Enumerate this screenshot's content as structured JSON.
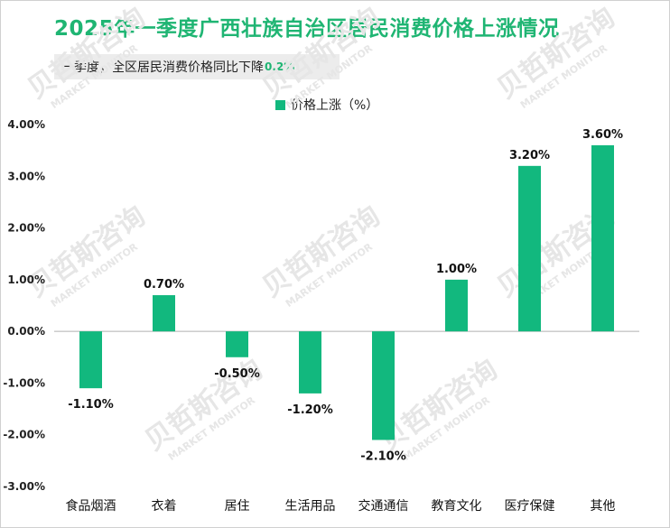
{
  "title": "2025年一季度广西壮族自治区居民消费价格上涨情况",
  "subtitle": {
    "text": "一季度，全区居民消费价格同比下降",
    "highlight": "0.2%"
  },
  "watermark": {
    "brand": "贝哲斯咨询",
    "tagline": "MARKET MONITOR"
  },
  "colors": {
    "bar": "#12b87e",
    "title": "#1fb573",
    "axis": "#b0b0b0"
  },
  "chart_data": {
    "type": "bar",
    "title": "2025年一季度广西壮族自治区居民消费价格上涨情况",
    "categories": [
      "食品烟酒",
      "衣着",
      "居住",
      "生活用品",
      "交通通信",
      "教育文化",
      "医疗保健",
      "其他"
    ],
    "series": [
      {
        "name": "价格上涨（%）",
        "values": [
          -1.1,
          0.7,
          -0.5,
          -1.2,
          -2.1,
          1.0,
          3.2,
          3.6
        ],
        "labels": [
          "-1.10%",
          "0.70%",
          "-0.50%",
          "-1.20%",
          "-2.10%",
          "1.00%",
          "3.20%",
          "3.60%"
        ]
      }
    ],
    "ylim": [
      -3.0,
      4.0
    ],
    "yticks": [
      4.0,
      3.0,
      2.0,
      1.0,
      0.0,
      -1.0,
      -2.0,
      -3.0
    ],
    "ytick_labels": [
      "4.00%",
      "3.00%",
      "2.00%",
      "1.00%",
      "0.00%",
      "-1.00%",
      "-2.00%",
      "-3.00%"
    ],
    "xlabel": "",
    "ylabel": "",
    "legend_position": "top-center",
    "grid": false
  }
}
